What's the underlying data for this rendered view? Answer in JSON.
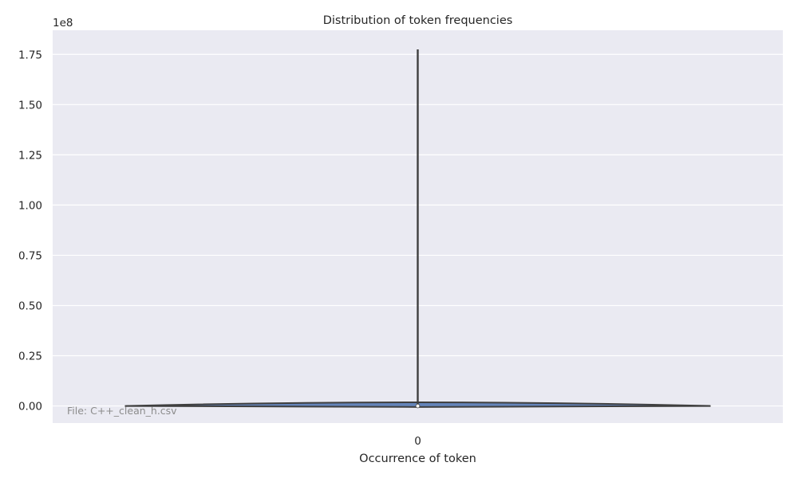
{
  "chart_data": {
    "type": "violin",
    "title": "Distribution of token frequencies",
    "xlabel": "Occurrence of token",
    "ylabel": "",
    "categories": [
      "0"
    ],
    "y_scale_label": "1e8",
    "y_ticks": [
      0.0,
      0.25,
      0.5,
      0.75,
      1.0,
      1.25,
      1.5,
      1.75
    ],
    "y_tick_labels": [
      "0.00",
      "0.25",
      "0.50",
      "0.75",
      "1.00",
      "1.25",
      "1.50",
      "1.75"
    ],
    "ylim": [
      -0.085,
      1.87
    ],
    "whisker": {
      "min": 0.0,
      "max": 1.775
    },
    "median": 0.0,
    "density_extent": {
      "min": -0.005,
      "max": 0.018
    },
    "annotation": "File: C++_clean_h.csv",
    "grid": true,
    "colors": {
      "background": "#eaeaf2",
      "grid": "#ffffff",
      "violin_fill": "#4c72b0",
      "violin_edge": "#3f3f3f",
      "whisker": "#3f3f3f",
      "median_marker": "#ffffff"
    }
  }
}
